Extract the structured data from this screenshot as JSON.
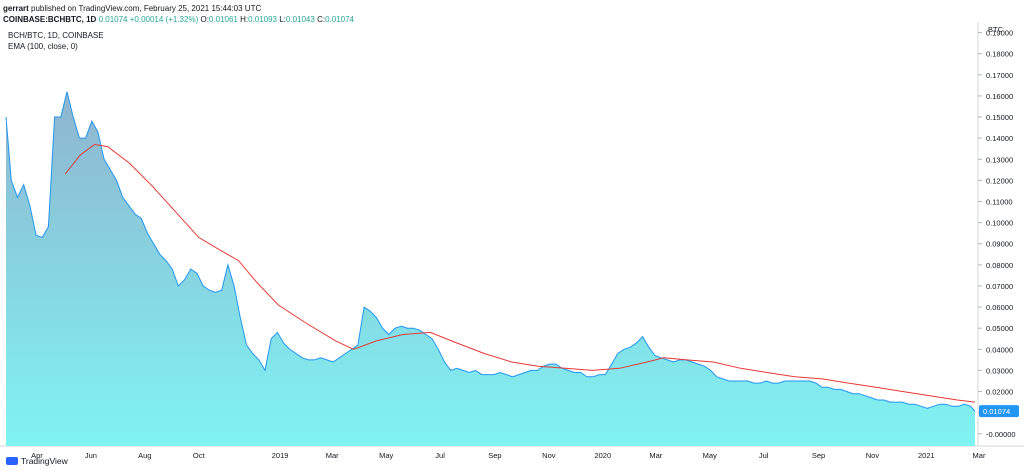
{
  "header": {
    "author": "gerrart",
    "published_text": "published on TradingView.com, February 25, 2021 15:44:03 UTC",
    "symbol": "COINBASE:BCHBTC, 1D",
    "last": "0.01074",
    "change": "+0.00014 (+1.32%)",
    "o_label": "O:",
    "o_value": "0.01061",
    "h_label": "H:",
    "h_value": "0.01093",
    "l_label": "L:",
    "l_value": "0.01043",
    "c_label": "C:",
    "c_value": "0.01074"
  },
  "legend": {
    "title": "BCH/BTC, 1D, COINBASE",
    "indicator": "EMA (100, close, 0)"
  },
  "footer": {
    "brand": "TradingView"
  },
  "colors": {
    "area_fill_top": "#8fb4cf",
    "area_fill_bottom": "#7ff4f3",
    "price_line": "#2196f3",
    "ema_line": "#e53935",
    "price_label_bg": "#2196f3",
    "grid": "#eeeeee",
    "axis_text": "#131722"
  },
  "chart_data": {
    "type": "area",
    "title": "BCH/BTC, 1D, COINBASE",
    "unit": "BTC",
    "y_ticks": [
      "0.19000",
      "0.18000",
      "0.17000",
      "0.16000",
      "0.15000",
      "0.14000",
      "0.13000",
      "0.12000",
      "0.11000",
      "0.10000",
      "0.09000",
      "0.08000",
      "0.07000",
      "0.06000",
      "0.05000",
      "0.04000",
      "0.03000",
      "0.02000",
      "0.01000",
      "-0.00000"
    ],
    "x_ticks": [
      "Apr",
      "Jun",
      "Aug",
      "Oct",
      "2019",
      "Mar",
      "May",
      "Jul",
      "Sep",
      "Nov",
      "2020",
      "Mar",
      "May",
      "Jul",
      "Sep",
      "Nov",
      "2021",
      "Mar"
    ],
    "ylim": [
      -0.002,
      0.195
    ],
    "last_price_label": "0.01074",
    "series": [
      {
        "name": "BCH/BTC",
        "points": [
          [
            "2018-02-25",
            0.15
          ],
          [
            "2018-03-03",
            0.12
          ],
          [
            "2018-03-10",
            0.112
          ],
          [
            "2018-03-17",
            0.118
          ],
          [
            "2018-03-24",
            0.108
          ],
          [
            "2018-03-31",
            0.094
          ],
          [
            "2018-04-07",
            0.093
          ],
          [
            "2018-04-14",
            0.098
          ],
          [
            "2018-04-21",
            0.15
          ],
          [
            "2018-04-28",
            0.15
          ],
          [
            "2018-05-05",
            0.162
          ],
          [
            "2018-05-12",
            0.15
          ],
          [
            "2018-05-19",
            0.14
          ],
          [
            "2018-05-26",
            0.14
          ],
          [
            "2018-06-02",
            0.148
          ],
          [
            "2018-06-09",
            0.143
          ],
          [
            "2018-06-16",
            0.13
          ],
          [
            "2018-06-23",
            0.125
          ],
          [
            "2018-06-30",
            0.12
          ],
          [
            "2018-07-07",
            0.112
          ],
          [
            "2018-07-14",
            0.108
          ],
          [
            "2018-07-21",
            0.104
          ],
          [
            "2018-07-28",
            0.102
          ],
          [
            "2018-08-04",
            0.095
          ],
          [
            "2018-08-11",
            0.09
          ],
          [
            "2018-08-18",
            0.085
          ],
          [
            "2018-08-25",
            0.082
          ],
          [
            "2018-09-01",
            0.078
          ],
          [
            "2018-09-08",
            0.07
          ],
          [
            "2018-09-15",
            0.073
          ],
          [
            "2018-09-22",
            0.078
          ],
          [
            "2018-09-29",
            0.076
          ],
          [
            "2018-10-06",
            0.07
          ],
          [
            "2018-10-13",
            0.068
          ],
          [
            "2018-10-20",
            0.067
          ],
          [
            "2018-10-27",
            0.068
          ],
          [
            "2018-11-03",
            0.08
          ],
          [
            "2018-11-10",
            0.07
          ],
          [
            "2018-11-17",
            0.055
          ],
          [
            "2018-11-24",
            0.042
          ],
          [
            "2018-12-01",
            0.038
          ],
          [
            "2018-12-08",
            0.035
          ],
          [
            "2018-12-15",
            0.03
          ],
          [
            "2018-12-22",
            0.045
          ],
          [
            "2018-12-29",
            0.048
          ],
          [
            "2019-01-05",
            0.043
          ],
          [
            "2019-01-12",
            0.04
          ],
          [
            "2019-01-19",
            0.038
          ],
          [
            "2019-01-26",
            0.036
          ],
          [
            "2019-02-02",
            0.035
          ],
          [
            "2019-02-09",
            0.035
          ],
          [
            "2019-02-16",
            0.036
          ],
          [
            "2019-02-23",
            0.035
          ],
          [
            "2019-03-02",
            0.034
          ],
          [
            "2019-03-09",
            0.036
          ],
          [
            "2019-03-16",
            0.038
          ],
          [
            "2019-03-23",
            0.04
          ],
          [
            "2019-03-30",
            0.042
          ],
          [
            "2019-04-06",
            0.06
          ],
          [
            "2019-04-13",
            0.058
          ],
          [
            "2019-04-20",
            0.055
          ],
          [
            "2019-04-27",
            0.05
          ],
          [
            "2019-05-04",
            0.047
          ],
          [
            "2019-05-11",
            0.05
          ],
          [
            "2019-05-18",
            0.051
          ],
          [
            "2019-05-25",
            0.05
          ],
          [
            "2019-06-01",
            0.05
          ],
          [
            "2019-06-08",
            0.049
          ],
          [
            "2019-06-15",
            0.047
          ],
          [
            "2019-06-22",
            0.045
          ],
          [
            "2019-06-29",
            0.04
          ],
          [
            "2019-07-06",
            0.034
          ],
          [
            "2019-07-13",
            0.03
          ],
          [
            "2019-07-20",
            0.031
          ],
          [
            "2019-07-27",
            0.03
          ],
          [
            "2019-08-03",
            0.029
          ],
          [
            "2019-08-10",
            0.03
          ],
          [
            "2019-08-17",
            0.028
          ],
          [
            "2019-08-24",
            0.028
          ],
          [
            "2019-08-31",
            0.028
          ],
          [
            "2019-09-07",
            0.029
          ],
          [
            "2019-09-14",
            0.028
          ],
          [
            "2019-09-21",
            0.027
          ],
          [
            "2019-09-28",
            0.028
          ],
          [
            "2019-10-05",
            0.029
          ],
          [
            "2019-10-12",
            0.03
          ],
          [
            "2019-10-19",
            0.03
          ],
          [
            "2019-10-26",
            0.032
          ],
          [
            "2019-11-02",
            0.033
          ],
          [
            "2019-11-09",
            0.033
          ],
          [
            "2019-11-16",
            0.031
          ],
          [
            "2019-11-23",
            0.03
          ],
          [
            "2019-11-30",
            0.029
          ],
          [
            "2019-12-07",
            0.029
          ],
          [
            "2019-12-14",
            0.027
          ],
          [
            "2019-12-21",
            0.027
          ],
          [
            "2019-12-28",
            0.028
          ],
          [
            "2020-01-04",
            0.028
          ],
          [
            "2020-01-11",
            0.033
          ],
          [
            "2020-01-18",
            0.038
          ],
          [
            "2020-01-25",
            0.04
          ],
          [
            "2020-02-01",
            0.041
          ],
          [
            "2020-02-08",
            0.043
          ],
          [
            "2020-02-15",
            0.046
          ],
          [
            "2020-02-22",
            0.041
          ],
          [
            "2020-02-29",
            0.037
          ],
          [
            "2020-03-07",
            0.036
          ],
          [
            "2020-03-14",
            0.035
          ],
          [
            "2020-03-21",
            0.034
          ],
          [
            "2020-03-28",
            0.035
          ],
          [
            "2020-04-04",
            0.035
          ],
          [
            "2020-04-11",
            0.034
          ],
          [
            "2020-04-18",
            0.033
          ],
          [
            "2020-04-25",
            0.032
          ],
          [
            "2020-05-02",
            0.03
          ],
          [
            "2020-05-09",
            0.027
          ],
          [
            "2020-05-16",
            0.026
          ],
          [
            "2020-05-23",
            0.025
          ],
          [
            "2020-05-30",
            0.025
          ],
          [
            "2020-06-06",
            0.025
          ],
          [
            "2020-06-13",
            0.025
          ],
          [
            "2020-06-20",
            0.024
          ],
          [
            "2020-06-27",
            0.024
          ],
          [
            "2020-07-04",
            0.025
          ],
          [
            "2020-07-11",
            0.024
          ],
          [
            "2020-07-18",
            0.024
          ],
          [
            "2020-07-25",
            0.025
          ],
          [
            "2020-08-01",
            0.025
          ],
          [
            "2020-08-08",
            0.025
          ],
          [
            "2020-08-15",
            0.025
          ],
          [
            "2020-08-22",
            0.025
          ],
          [
            "2020-08-29",
            0.024
          ],
          [
            "2020-09-05",
            0.022
          ],
          [
            "2020-09-12",
            0.022
          ],
          [
            "2020-09-19",
            0.021
          ],
          [
            "2020-09-26",
            0.021
          ],
          [
            "2020-10-03",
            0.02
          ],
          [
            "2020-10-10",
            0.019
          ],
          [
            "2020-10-17",
            0.019
          ],
          [
            "2020-10-24",
            0.018
          ],
          [
            "2020-10-31",
            0.017
          ],
          [
            "2020-11-07",
            0.016
          ],
          [
            "2020-11-14",
            0.016
          ],
          [
            "2020-11-21",
            0.015
          ],
          [
            "2020-11-28",
            0.015
          ],
          [
            "2020-12-05",
            0.015
          ],
          [
            "2020-12-12",
            0.014
          ],
          [
            "2020-12-19",
            0.014
          ],
          [
            "2020-12-26",
            0.013
          ],
          [
            "2021-01-02",
            0.012
          ],
          [
            "2021-01-09",
            0.013
          ],
          [
            "2021-01-16",
            0.014
          ],
          [
            "2021-01-23",
            0.014
          ],
          [
            "2021-01-30",
            0.013
          ],
          [
            "2021-02-06",
            0.013
          ],
          [
            "2021-02-13",
            0.014
          ],
          [
            "2021-02-20",
            0.013
          ],
          [
            "2021-02-25",
            0.01074
          ]
        ]
      },
      {
        "name": "EMA (100, close, 0)",
        "points": [
          [
            "2018-05-03",
            0.123
          ],
          [
            "2018-05-20",
            0.132
          ],
          [
            "2018-06-05",
            0.137
          ],
          [
            "2018-06-20",
            0.136
          ],
          [
            "2018-07-15",
            0.128
          ],
          [
            "2018-08-10",
            0.117
          ],
          [
            "2018-09-05",
            0.105
          ],
          [
            "2018-10-01",
            0.093
          ],
          [
            "2018-10-25",
            0.087
          ],
          [
            "2018-11-15",
            0.082
          ],
          [
            "2018-12-05",
            0.072
          ],
          [
            "2018-12-30",
            0.061
          ],
          [
            "2019-02-01",
            0.052
          ],
          [
            "2019-03-05",
            0.044
          ],
          [
            "2019-03-25",
            0.04
          ],
          [
            "2019-04-20",
            0.044
          ],
          [
            "2019-05-20",
            0.047
          ],
          [
            "2019-06-20",
            0.048
          ],
          [
            "2019-07-20",
            0.043
          ],
          [
            "2019-08-20",
            0.038
          ],
          [
            "2019-09-20",
            0.034
          ],
          [
            "2019-10-20",
            0.032
          ],
          [
            "2019-11-20",
            0.031
          ],
          [
            "2019-12-20",
            0.03
          ],
          [
            "2020-01-20",
            0.031
          ],
          [
            "2020-02-20",
            0.034
          ],
          [
            "2020-03-10",
            0.036
          ],
          [
            "2020-04-05",
            0.035
          ],
          [
            "2020-05-05",
            0.034
          ],
          [
            "2020-06-05",
            0.031
          ],
          [
            "2020-07-05",
            0.029
          ],
          [
            "2020-08-05",
            0.027
          ],
          [
            "2020-09-05",
            0.026
          ],
          [
            "2020-10-05",
            0.024
          ],
          [
            "2020-11-05",
            0.022
          ],
          [
            "2020-12-05",
            0.02
          ],
          [
            "2021-01-05",
            0.018
          ],
          [
            "2021-02-05",
            0.016
          ],
          [
            "2021-02-25",
            0.015
          ]
        ]
      }
    ]
  }
}
